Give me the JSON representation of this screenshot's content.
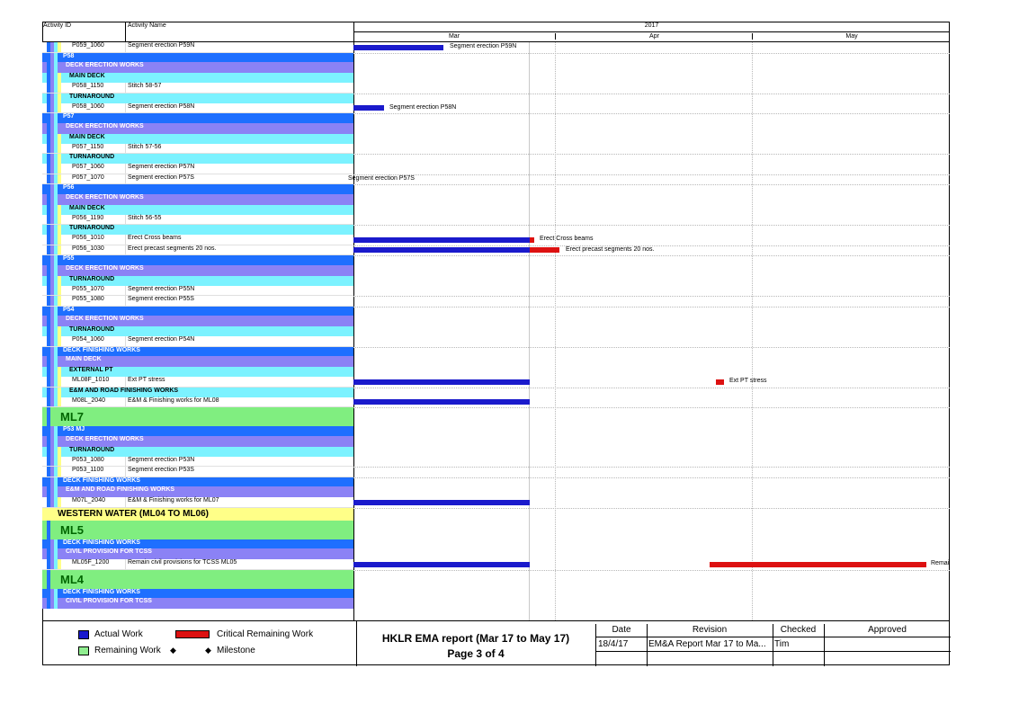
{
  "header": {
    "activity_id": "Activity ID",
    "activity_name": "Activity Name",
    "year": "2017",
    "months": [
      "Mar",
      "Apr",
      "May"
    ]
  },
  "colors": {
    "actual": "#0000ff",
    "critical": "#ff0000",
    "remaining": "#90ee90",
    "wbs_blue": "#1e6fff",
    "wbs_purple": "#8b82f5",
    "wbs_cyan": "#7cf2ff",
    "wbs_green": "#80ee80",
    "wbs_yellow": "#ffff88",
    "gantt_actual_bar": "#1a1acc",
    "gantt_critical_bar": "#dd1111"
  },
  "rows": [
    {
      "type": "activity",
      "id": "P059_1060",
      "name": "Segment erection P59N"
    },
    {
      "type": "wbs1",
      "label": "P58"
    },
    {
      "type": "wbs2",
      "label": "DECK ERECTION WORKS"
    },
    {
      "type": "wbs3",
      "label": "MAIN DECK"
    },
    {
      "type": "activity",
      "id": "P058_1150",
      "name": "Stitch 58-57"
    },
    {
      "type": "wbs3",
      "label": "TURNAROUND"
    },
    {
      "type": "activity",
      "id": "P058_1060",
      "name": "Segment erection P58N"
    },
    {
      "type": "wbs1",
      "label": "P57"
    },
    {
      "type": "wbs2",
      "label": "DECK ERECTION WORKS"
    },
    {
      "type": "wbs3",
      "label": "MAIN DECK"
    },
    {
      "type": "activity",
      "id": "P057_1150",
      "name": "Stitch 57-56"
    },
    {
      "type": "wbs3",
      "label": "TURNAROUND"
    },
    {
      "type": "activity",
      "id": "P057_1060",
      "name": "Segment erection P57N"
    },
    {
      "type": "activity",
      "id": "P057_1070",
      "name": "Segment erection P57S"
    },
    {
      "type": "wbs1",
      "label": "P56"
    },
    {
      "type": "wbs2",
      "label": "DECK ERECTION WORKS"
    },
    {
      "type": "wbs3",
      "label": "MAIN DECK"
    },
    {
      "type": "activity",
      "id": "P056_1190",
      "name": "Stitch 56-55"
    },
    {
      "type": "wbs3",
      "label": "TURNAROUND"
    },
    {
      "type": "activity",
      "id": "P056_1010",
      "name": "Erect Cross beams"
    },
    {
      "type": "activity",
      "id": "P056_1030",
      "name": "Erect precast segments 20 nos."
    },
    {
      "type": "wbs1",
      "label": "P55"
    },
    {
      "type": "wbs2",
      "label": "DECK ERECTION WORKS"
    },
    {
      "type": "wbs3",
      "label": "TURNAROUND"
    },
    {
      "type": "activity",
      "id": "P055_1070",
      "name": "Segment erection P55N"
    },
    {
      "type": "activity",
      "id": "P055_1080",
      "name": "Segment erection P55S"
    },
    {
      "type": "wbs1",
      "label": "P54"
    },
    {
      "type": "wbs2",
      "label": "DECK ERECTION WORKS"
    },
    {
      "type": "wbs3",
      "label": "TURNAROUND"
    },
    {
      "type": "activity",
      "id": "P054_1060",
      "name": "Segment erection P54N"
    },
    {
      "type": "wbs1",
      "label": "DECK FINISHING WORKS"
    },
    {
      "type": "wbs2",
      "label": "MAIN DECK"
    },
    {
      "type": "wbs3",
      "label": "EXTERNAL PT"
    },
    {
      "type": "activity",
      "id": "ML08F_1010",
      "name": "Ext PT stress"
    },
    {
      "type": "wbs3",
      "label": "E&M AND ROAD FINISHING WORKS"
    },
    {
      "type": "activity",
      "id": "M08L_2040",
      "name": "E&M & Finishing works for ML08"
    },
    {
      "type": "ml",
      "label": "ML7"
    },
    {
      "type": "wbs1",
      "label": "P53 MJ"
    },
    {
      "type": "wbs2",
      "label": "DECK ERECTION WORKS"
    },
    {
      "type": "wbs3",
      "label": "TURNAROUND"
    },
    {
      "type": "activity",
      "id": "P053_1080",
      "name": "Segment erection P53N"
    },
    {
      "type": "activity",
      "id": "P053_1100",
      "name": "Segment erection P53S"
    },
    {
      "type": "wbs1",
      "label": "DECK FINISHING WORKS"
    },
    {
      "type": "wbs2",
      "label": "E&M AND ROAD FINISHING WORKS"
    },
    {
      "type": "activity",
      "id": "M07L_2040",
      "name": "E&M & Finishing works for ML07"
    },
    {
      "type": "western",
      "label": "WESTERN WATER (ML04 TO ML06)"
    },
    {
      "type": "ml",
      "label": "ML5"
    },
    {
      "type": "wbs1",
      "label": "DECK FINISHING WORKS"
    },
    {
      "type": "wbs2",
      "label": "CIVIL PROVISION FOR TCSS"
    },
    {
      "type": "activity",
      "id": "ML05F_1200",
      "name": "Remain civil provisions for TCSS ML05"
    },
    {
      "type": "ml",
      "label": "ML4"
    },
    {
      "type": "wbs1",
      "label": "DECK FINISHING WORKS"
    },
    {
      "type": "wbs2",
      "label": "CIVIL PROVISION FOR TCSS"
    }
  ],
  "gantt_labels": {
    "0": "Segment erection P59N",
    "6": "Segment erection P58N",
    "13": "Segment erection P57S",
    "19": "Erect Cross beams",
    "20": "Erect precast segments 20 nos.",
    "33": "Ext PT stress",
    "49": "Remai"
  },
  "legend": {
    "actual_work": "Actual Work",
    "critical_remaining": "Critical Remaining Work",
    "remaining_work": "Remaining Work",
    "milestone": "Milestone"
  },
  "report": {
    "title": "HKLR EMA report (Mar 17 to May 17)",
    "page": "Page 3 of 4"
  },
  "revision_table": {
    "headers": [
      "Date",
      "Revision",
      "Checked",
      "Approved"
    ],
    "row": [
      "18/4/17",
      "EM&A Report Mar 17 to Ma...",
      "Tim",
      ""
    ]
  }
}
